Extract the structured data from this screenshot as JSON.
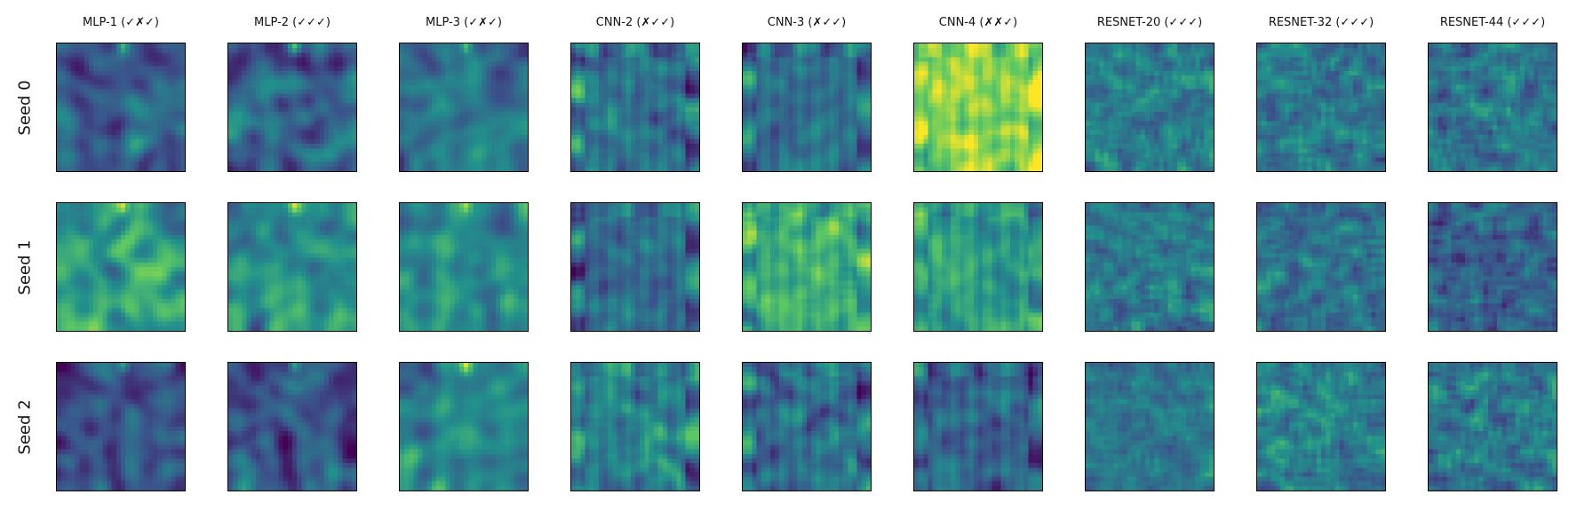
{
  "chart_data": {
    "type": "heatmap",
    "colormap": "viridis",
    "colormap_stops": [
      "#440154",
      "#3b528b",
      "#21918c",
      "#5ec962",
      "#fde725"
    ],
    "columns": [
      {
        "title": "MLP-1 (✓✗✓)",
        "style": "mlp",
        "base": 0.3
      },
      {
        "title": "MLP-2 (✓✓✓)",
        "style": "mlp",
        "base": 0.34
      },
      {
        "title": "MLP-3 (✓✗✓)",
        "style": "mlp",
        "base": 0.42
      },
      {
        "title": "CNN-2 (✗✓✓)",
        "style": "cnn",
        "base": 0.38
      },
      {
        "title": "CNN-3 (✗✓✓)",
        "style": "cnn",
        "base": 0.36
      },
      {
        "title": "CNN-4 (✗✗✓)",
        "style": "cnn",
        "base": 0.62
      },
      {
        "title": "RESNET-20 (✓✓✓)",
        "style": "resnet",
        "base": 0.42
      },
      {
        "title": "RESNET-32 (✓✓✓)",
        "style": "resnet",
        "base": 0.4
      },
      {
        "title": "RESNET-44 (✓✓✓)",
        "style": "resnet",
        "base": 0.4
      }
    ],
    "rows": [
      {
        "label": "Seed 0"
      },
      {
        "label": "Seed 1"
      },
      {
        "label": "Seed 2"
      }
    ],
    "cell_base_overrides": [
      [
        0.3,
        0.34,
        0.42,
        0.38,
        0.36,
        0.82,
        0.42,
        0.4,
        0.4
      ],
      [
        0.58,
        0.52,
        0.48,
        0.35,
        0.62,
        0.55,
        0.4,
        0.38,
        0.32
      ],
      [
        0.26,
        0.28,
        0.5,
        0.44,
        0.36,
        0.32,
        0.4,
        0.44,
        0.42
      ]
    ],
    "grid_resolution": 28,
    "xticks": [],
    "yticks": []
  }
}
